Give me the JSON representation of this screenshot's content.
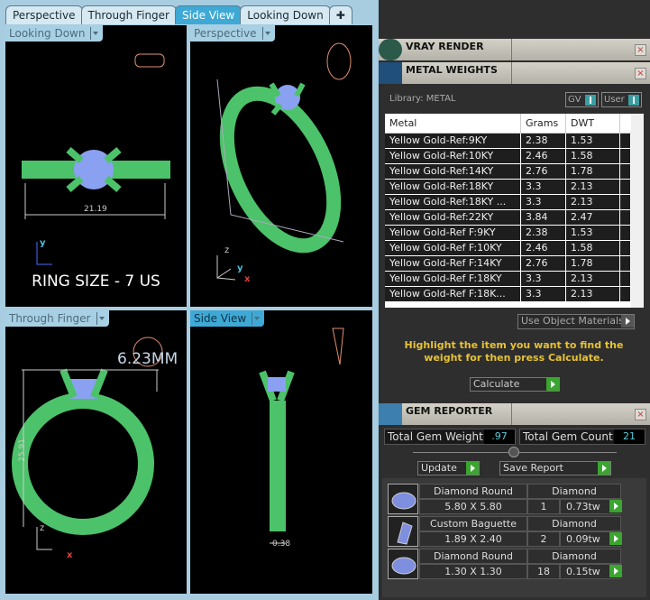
{
  "tabs": [
    "Perspective",
    "Through Finger",
    "Side View",
    "Looking Down"
  ],
  "active_tab": "Side View",
  "viewports": [
    {
      "label": "Looking Down",
      "dimension": "21.19",
      "caption": "RING SIZE - 7 US"
    },
    {
      "label": "Perspective"
    },
    {
      "label": "Through Finger",
      "dimension": "25.91",
      "caption": "6.23MM"
    },
    {
      "label": "Side View",
      "dimension": "0.38"
    }
  ],
  "axes": {
    "x": "x",
    "y": "y",
    "z": "z"
  },
  "panels": {
    "vray": "VRAY RENDER",
    "metal": "METAL WEIGHTS",
    "gem": "GEM REPORTER",
    "close": "×"
  },
  "metal": {
    "library": "Library: METAL",
    "gv": "GV",
    "user": "User",
    "headers": [
      "Metal",
      "Grams",
      "DWT"
    ],
    "rows": [
      [
        "Yellow Gold-Ref:9KY",
        "2.38",
        "1.53"
      ],
      [
        "Yellow Gold-Ref:10KY",
        "2.46",
        "1.58"
      ],
      [
        "Yellow Gold-Ref:14KY",
        "2.76",
        "1.78"
      ],
      [
        "Yellow Gold-Ref:18KY",
        "3.3",
        "2.13"
      ],
      [
        "Yellow Gold-Ref:18KY ...",
        "3.3",
        "2.13"
      ],
      [
        "Yellow Gold-Ref:22KY",
        "3.84",
        "2.47"
      ],
      [
        "Yellow Gold-Ref F:9KY",
        "2.38",
        "1.53"
      ],
      [
        "Yellow Gold-Ref F:10KY",
        "2.46",
        "1.58"
      ],
      [
        "Yellow Gold-Ref F:14KY",
        "2.76",
        "1.78"
      ],
      [
        "Yellow Gold-Ref F:18KY",
        "3.3",
        "2.13"
      ],
      [
        "Yellow Gold-Ref F:18K...",
        "3.3",
        "2.13"
      ]
    ],
    "use_object_materials": "Use Object Materials",
    "message": "Highlight the item you want to find the weight for then press Calculate.",
    "calculate": "Calculate"
  },
  "gem": {
    "total_weight_label": "Total Gem Weight",
    "total_weight": ".97",
    "total_count_label": "Total Gem Count",
    "total_count": "21",
    "update": "Update",
    "save_report": "Save Report",
    "items": [
      {
        "shape": "Diamond Round",
        "size": "5.80 X 5.80",
        "type": "Diamond",
        "count": "1",
        "weight": "0.73tw",
        "icon": "round-gem-icon"
      },
      {
        "shape": "Custom Baguette",
        "size": "1.89 X 2.40",
        "type": "Diamond",
        "count": "2",
        "weight": "0.09tw",
        "icon": "baguette-gem-icon"
      },
      {
        "shape": "Diamond Round",
        "size": "1.30 X 1.30",
        "type": "Diamond",
        "count": "18",
        "weight": "0.15tw",
        "icon": "round-gem-icon"
      }
    ]
  },
  "colors": {
    "metal": "#4cc26a",
    "gem": "#8aa0f0",
    "accent": "#3fa9d6",
    "message": "#e6c235"
  }
}
